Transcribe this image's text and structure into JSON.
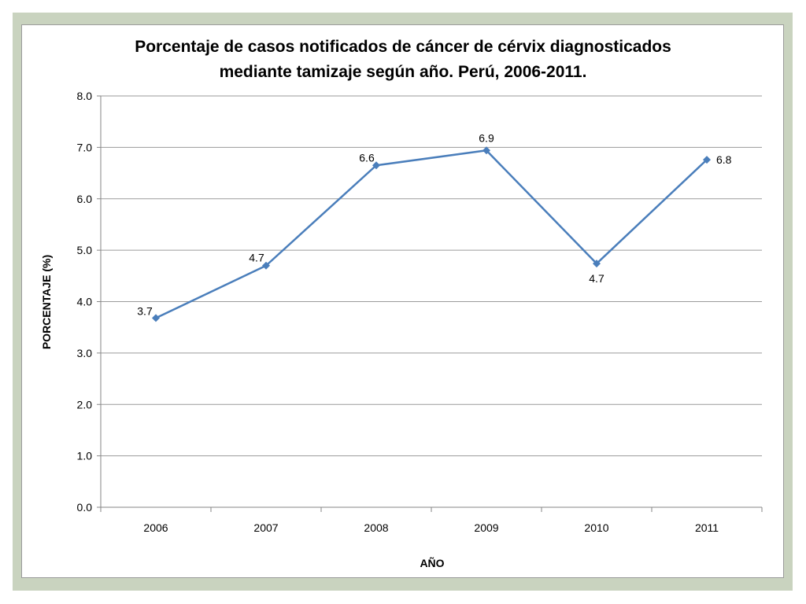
{
  "chart_data": {
    "type": "line",
    "title_lines": [
      "Porcentaje de casos notificados de cáncer de cérvix diagnosticados",
      "mediante tamizaje según año. Perú, 2006-2011."
    ],
    "xlabel": "AÑO",
    "ylabel": "PORCENTAJE (%)",
    "categories": [
      "2006",
      "2007",
      "2008",
      "2009",
      "2010",
      "2011"
    ],
    "series": [
      {
        "values": [
          3.68,
          4.7,
          6.65,
          6.94,
          4.74,
          6.76
        ],
        "data_labels": [
          "3.7",
          "4.7",
          "6.6",
          "6.9",
          "4.7",
          "6.8"
        ],
        "color": "#4a7ebb"
      }
    ],
    "ylim": [
      0,
      8
    ],
    "yticks": [
      "0.0",
      "1.0",
      "2.0",
      "3.0",
      "4.0",
      "5.0",
      "6.0",
      "7.0",
      "8.0"
    ],
    "grid": true,
    "marker": "diamond",
    "legend": "none"
  }
}
